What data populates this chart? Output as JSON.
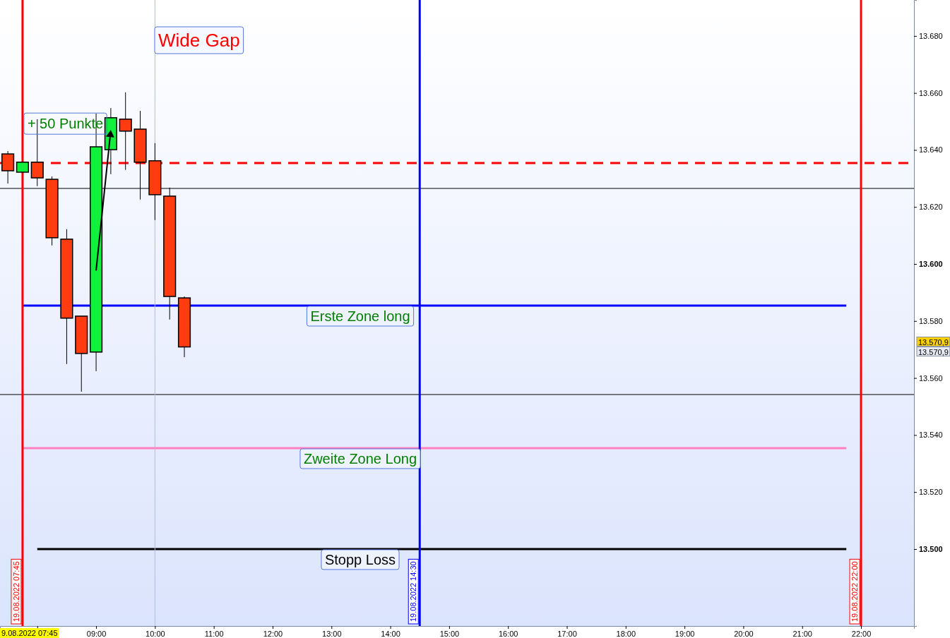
{
  "chart_data": {
    "type": "candlestick",
    "x": [
      "2022-08-19T07:30",
      "2022-08-19T07:45",
      "2022-08-19T08:00",
      "2022-08-19T08:15",
      "2022-08-19T08:30",
      "2022-08-19T08:45",
      "2022-08-19T09:00",
      "2022-08-19T09:15",
      "2022-08-19T09:30",
      "2022-08-19T09:45",
      "2022-08-19T10:00",
      "2022-08-19T10:15",
      "2022-08-19T10:30"
    ],
    "ohlc": [
      [
        13638.6,
        13639.6,
        13628.2,
        13632.7
      ],
      [
        13632.2,
        13635.7,
        13632.2,
        13635.7
      ],
      [
        13635.7,
        13650.8,
        13627.3,
        13630.2
      ],
      [
        13629.7,
        13630.7,
        13606.5,
        13609.2
      ],
      [
        13608.7,
        13612.2,
        13564.9,
        13581
      ],
      [
        13581.7,
        13581.7,
        13555.2,
        13568.6
      ],
      [
        13569.1,
        13652.8,
        13562.4,
        13641.1
      ],
      [
        13640.1,
        13654.7,
        13631.5,
        13651.3
      ],
      [
        13650.8,
        13660.2,
        13633,
        13646.6
      ],
      [
        13647.3,
        13653.7,
        13622.6,
        13635.7
      ],
      [
        13636.2,
        13642.4,
        13615.4,
        13624.3
      ],
      [
        13623.8,
        13626.8,
        13580.5,
        13588.6
      ],
      [
        13588.1,
        13588.6,
        13567.3,
        13570.9
      ]
    ],
    "colors": [
      "#ff3c10",
      "#11f03c",
      "#ff3c10",
      "#ff3c10",
      "#ff3c10",
      "#ff3c10",
      "#11f03c",
      "#11f03c",
      "#ff3c10",
      "#ff3c10",
      "#ff3c10",
      "#ff3c10",
      "#ff3c10"
    ],
    "xlim": [
      "2022-08-19T07:22",
      "2022-08-19T22:54"
    ],
    "xticks": [
      {
        "value": "2022-08-19T08:00",
        "label": null
      },
      {
        "value": "2022-08-19T09:00",
        "label": "09:00"
      },
      {
        "value": "2022-08-19T10:00",
        "label": "10:00"
      },
      {
        "value": "2022-08-19T11:00",
        "label": "11:00"
      },
      {
        "value": "2022-08-19T12:00",
        "label": "12:00"
      },
      {
        "value": "2022-08-19T13:00",
        "label": "13:00"
      },
      {
        "value": "2022-08-19T14:00",
        "label": "14:00"
      },
      {
        "value": "2022-08-19T15:00",
        "label": "15:00"
      },
      {
        "value": "2022-08-19T16:00",
        "label": "16:00"
      },
      {
        "value": "2022-08-19T17:00",
        "label": "17:00"
      },
      {
        "value": "2022-08-19T18:00",
        "label": "18:00"
      },
      {
        "value": "2022-08-19T19:00",
        "label": "19:00"
      },
      {
        "value": "2022-08-19T20:00",
        "label": "20:00"
      },
      {
        "value": "2022-08-19T21:00",
        "label": "21:00"
      },
      {
        "value": "2022-08-19T22:00",
        "label": "22:00"
      }
    ],
    "ylim": [
      13473,
      13692.6
    ],
    "yticks": [
      {
        "value": 13500,
        "label": "13.500"
      },
      {
        "value": 13520,
        "label": "13.520"
      },
      {
        "value": 13540,
        "label": "13.540"
      },
      {
        "value": 13560,
        "label": "13.560"
      },
      {
        "value": 13580,
        "label": "13.580"
      },
      {
        "value": 13600,
        "label": "13.600"
      },
      {
        "value": 13620,
        "label": "13.620"
      },
      {
        "value": 13640,
        "label": "13.640"
      },
      {
        "value": 13660,
        "label": "13.660"
      },
      {
        "value": 13680,
        "label": "13.680"
      }
    ],
    "ref_lines": [
      {
        "axis": "y",
        "value": 13635.4,
        "color": "#ff0000",
        "line_style": "dashed"
      },
      {
        "axis": "y",
        "value": 13626.5,
        "color": "#000000"
      },
      {
        "axis": "y",
        "value": 13554.2,
        "color": "#000000"
      },
      {
        "axis": "y",
        "value": 13585.4,
        "color": "#0000ff",
        "label": "Erste Zone long"
      },
      {
        "axis": "y",
        "value": 13535.4,
        "color": "#ff80c0",
        "label": "Zweite Zone Long"
      },
      {
        "axis": "y",
        "value": 13500,
        "color": "#000000",
        "label": "Stopp Loss"
      },
      {
        "axis": "x",
        "value": "2022-08-19T07:45",
        "color": "#ff0000",
        "label": "19.08.2022 07:45"
      },
      {
        "axis": "x",
        "value": "2022-08-19T10:00",
        "color": "#b0bce8"
      },
      {
        "axis": "x",
        "value": "2022-08-19T14:30",
        "color": "#0000ff",
        "label": "19.08.2022 14:30"
      },
      {
        "axis": "x",
        "value": "2022-08-19T22:00",
        "color": "#ff0000",
        "label": "19.08.2022 22:00"
      }
    ],
    "annotations": [
      "Wide Gap",
      {
        "text": "+ 50 Punkte",
        "x": "2022-08-19T09:15",
        "y": 13647
      },
      "9.08.2022 07:45",
      "13.570,9",
      "13.570,9"
    ],
    "grid": false
  }
}
